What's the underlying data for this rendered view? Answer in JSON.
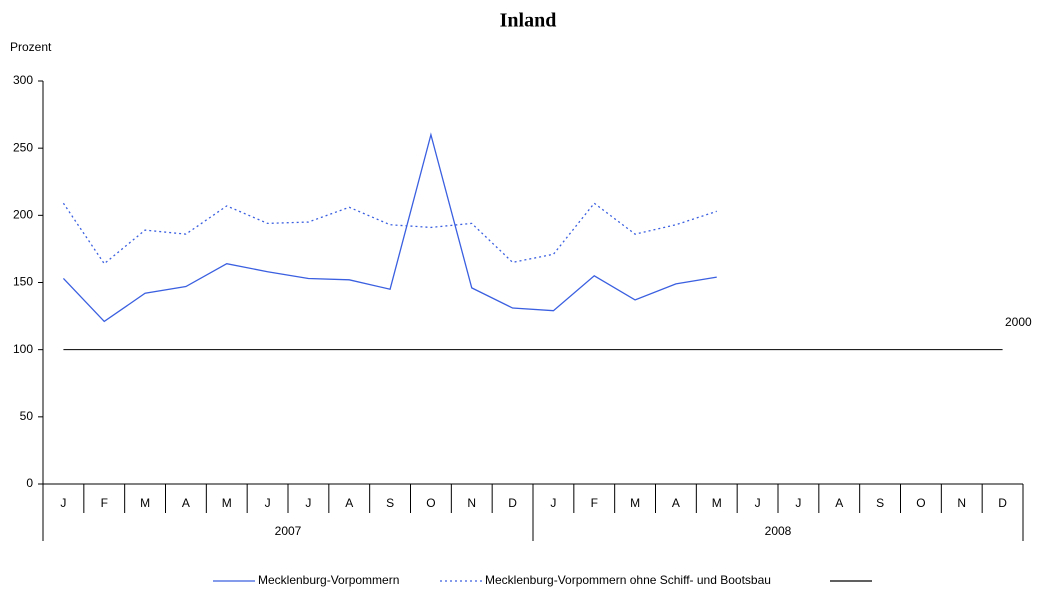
{
  "chart_data": {
    "type": "line",
    "title": "Inland",
    "y_label": "Prozent",
    "categories": [
      "J",
      "F",
      "M",
      "A",
      "M",
      "J",
      "J",
      "A",
      "S",
      "O",
      "N",
      "D",
      "J",
      "F",
      "M",
      "A",
      "M",
      "J",
      "J",
      "A",
      "S",
      "O",
      "N",
      "D"
    ],
    "groups": [
      "2007",
      "2008"
    ],
    "series": [
      {
        "name": "Mecklenburg-Vorpommern",
        "color": "#3a5fe0",
        "dash": "solid",
        "values": [
          153,
          121,
          142,
          147,
          164,
          158,
          153,
          152,
          145,
          260,
          146,
          131,
          129,
          155,
          137,
          149,
          154,
          null,
          null,
          null,
          null,
          null,
          null,
          null
        ]
      },
      {
        "name": "Mecklenburg-Vorpommern ohne Schiff- und Bootsbau",
        "color": "#3a5fe0",
        "dash": "dotted",
        "values": [
          209,
          164,
          189,
          186,
          207,
          194,
          195,
          206,
          193,
          191,
          194,
          165,
          171,
          209,
          186,
          193,
          203,
          null,
          null,
          null,
          null,
          null,
          null,
          null
        ]
      },
      {
        "color": "#000000",
        "dash": "solid",
        "values": [
          100,
          100,
          100,
          100,
          100,
          100,
          100,
          100,
          100,
          100,
          100,
          100,
          100,
          100,
          100,
          100,
          100,
          100,
          100,
          100,
          100,
          100,
          100,
          100
        ]
      }
    ],
    "annotation": "2000",
    "ylim": [
      0,
      300
    ],
    "yticks": [
      0,
      50,
      100,
      150,
      200,
      250,
      300
    ]
  }
}
